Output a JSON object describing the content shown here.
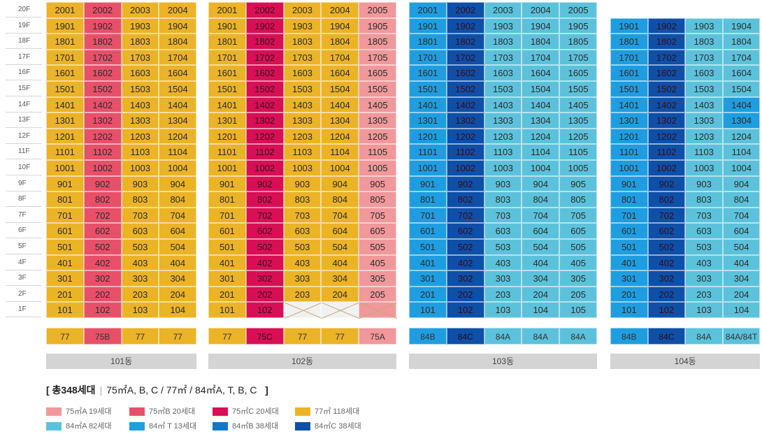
{
  "floors": [
    "20F",
    "19F",
    "18F",
    "17F",
    "16F",
    "15F",
    "14F",
    "13F",
    "12F",
    "11F",
    "10F",
    "9F",
    "8F",
    "7F",
    "6F",
    "5F",
    "4F",
    "3F",
    "2F",
    "1F"
  ],
  "colors": {
    "75A": "#f0989a",
    "75B": "#e8506a",
    "75C": "#d80f55",
    "77": "#ebb326",
    "84A": "#5cc2db",
    "84T": "#1e9ee0",
    "84B": "#1576c7",
    "84C": "#0e4fa8"
  },
  "buildings": [
    {
      "name": "101동",
      "top_floor": 20,
      "column_types": [
        "77",
        "75B",
        "77",
        "77"
      ],
      "type_labels": [
        "77",
        "75B",
        "77",
        "77"
      ],
      "empty_units": []
    },
    {
      "name": "102동",
      "top_floor": 20,
      "column_types": [
        "77",
        "75C",
        "77",
        "77",
        "75A"
      ],
      "type_labels": [
        "77",
        "75C",
        "77",
        "77",
        "75A"
      ],
      "empty_units": [
        "103",
        "104",
        "105"
      ]
    },
    {
      "name": "103동",
      "top_floor": 20,
      "column_types": [
        "84T",
        "84C",
        "84A",
        "84A",
        "84A"
      ],
      "type_labels": [
        "84B",
        "84C",
        "84A",
        "84A",
        "84A"
      ],
      "empty_units": []
    },
    {
      "name": "104동",
      "top_floor": 19,
      "column_types": [
        "84T",
        "84C",
        "84A",
        "84A"
      ],
      "type_labels": [
        "84B",
        "84C",
        "84A",
        "84A/84T"
      ],
      "empty_units": [],
      "overrides": {
        "1304": "84T",
        "1404": "84T"
      }
    }
  ],
  "legend": {
    "title_bold": "[ 총348세대",
    "title_rest": "75㎡A, B, C / 77㎡ / 84㎡A, T, B, C",
    "title_end": "]",
    "items": [
      {
        "type": "75A",
        "label": "75㎡A  19세대"
      },
      {
        "type": "75B",
        "label": "75㎡B  20세대"
      },
      {
        "type": "75C",
        "label": "75㎡C  20세대"
      },
      {
        "type": "77",
        "label": "77㎡  118세대"
      },
      {
        "type": "84A",
        "label": "84㎡A  82세대"
      },
      {
        "type": "84T",
        "label": "84㎡ T  13세대"
      },
      {
        "type": "84B",
        "label": "84㎡B  38세대"
      },
      {
        "type": "84C",
        "label": "84㎡C  38세대"
      }
    ]
  }
}
